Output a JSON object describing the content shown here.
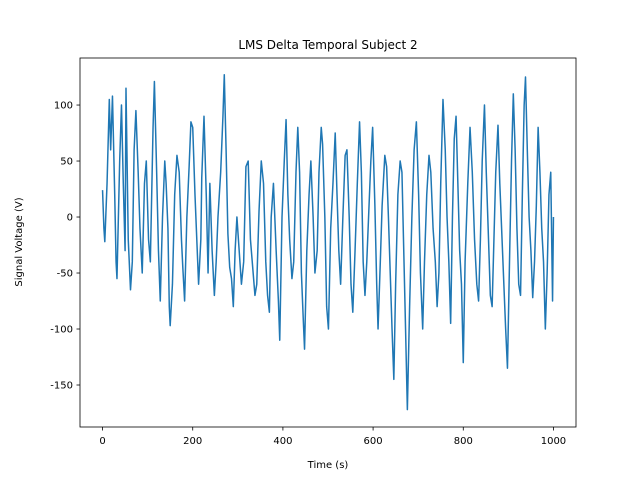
{
  "chart_data": {
    "type": "line",
    "title": "LMS Delta Temporal Subject 2",
    "x_label": "Time (s)",
    "y_label": "Signal Voltage (V)",
    "xlim": [
      -50,
      1050
    ],
    "ylim": [
      -187.5,
      142
    ],
    "xticks": [
      0,
      200,
      400,
      600,
      800,
      1000
    ],
    "yticks": [
      -150,
      -100,
      -50,
      0,
      50,
      100
    ],
    "grid": false,
    "x": [
      0,
      3,
      5,
      10,
      15,
      18,
      22,
      27,
      30,
      32,
      38,
      42,
      46,
      50,
      52,
      57,
      62,
      66,
      70,
      74,
      79,
      83,
      88,
      93,
      97,
      102,
      106,
      112,
      115,
      120,
      124,
      128,
      133,
      138,
      141,
      145,
      148,
      150,
      155,
      160,
      165,
      170,
      175,
      178,
      182,
      187,
      192,
      196,
      200,
      205,
      210,
      213,
      218,
      220,
      225,
      230,
      234,
      238,
      243,
      248,
      252,
      256,
      262,
      267,
      270,
      274,
      278,
      282,
      286,
      290,
      294,
      298,
      303,
      308,
      313,
      318,
      323,
      328,
      333,
      338,
      342,
      347,
      352,
      357,
      362,
      366,
      370,
      374,
      379,
      385,
      390,
      393,
      398,
      403,
      407,
      411,
      415,
      420,
      424,
      429,
      433,
      437,
      441,
      445,
      448,
      453,
      458,
      462,
      467,
      471,
      476,
      480,
      485,
      488,
      493,
      497,
      501,
      506,
      511,
      516,
      520,
      524,
      528,
      533,
      538,
      542,
      547,
      551,
      555,
      560,
      565,
      570,
      574,
      578,
      582,
      586,
      590,
      595,
      599,
      604,
      608,
      611,
      616,
      620,
      626,
      630,
      634,
      638,
      642,
      646,
      650,
      655,
      660,
      664,
      668,
      672,
      676,
      681,
      686,
      691,
      696,
      701,
      705,
      710,
      714,
      719,
      724,
      728,
      733,
      738,
      742,
      746,
      750,
      755,
      760,
      764,
      768,
      772,
      776,
      780,
      784,
      788,
      792,
      796,
      800,
      804,
      810,
      815,
      820,
      825,
      830,
      834,
      838,
      842,
      847,
      851,
      856,
      860,
      864,
      868,
      872,
      877,
      881,
      886,
      890,
      894,
      898,
      903,
      907,
      911,
      915,
      919,
      923,
      927,
      931,
      935,
      938,
      942,
      946,
      950,
      954,
      958,
      962,
      966,
      970,
      974,
      978,
      982,
      986,
      990,
      994,
      998,
      1000
    ],
    "series": [
      {
        "color": "#1f77b4",
        "values": [
          24,
          -10,
          -22,
          30,
          105,
          60,
          108,
          20,
          -40,
          -55,
          50,
          100,
          30,
          -30,
          115,
          -20,
          -65,
          -40,
          60,
          95,
          40,
          -10,
          -50,
          30,
          50,
          -20,
          -40,
          80,
          121,
          40,
          -30,
          -75,
          0,
          50,
          30,
          -10,
          -80,
          -97,
          -60,
          20,
          55,
          40,
          -20,
          -45,
          -75,
          0,
          45,
          85,
          80,
          20,
          -30,
          -60,
          -20,
          35,
          90,
          20,
          -50,
          30,
          -30,
          -70,
          -40,
          0,
          40,
          90,
          127,
          60,
          -15,
          -45,
          -55,
          -80,
          -30,
          0,
          -30,
          -60,
          -40,
          45,
          50,
          -20,
          -45,
          -70,
          -60,
          5,
          50,
          30,
          -40,
          -70,
          -85,
          0,
          30,
          -30,
          -75,
          -110,
          0,
          50,
          87,
          20,
          -20,
          -55,
          -40,
          40,
          80,
          40,
          -50,
          -90,
          -118,
          -30,
          20,
          50,
          0,
          -50,
          -30,
          40,
          80,
          65,
          0,
          -80,
          -100,
          -10,
          30,
          75,
          20,
          -30,
          -60,
          0,
          55,
          60,
          0,
          -60,
          -85,
          -30,
          30,
          85,
          40,
          -40,
          -70,
          -40,
          0,
          50,
          80,
          10,
          -60,
          -100,
          -40,
          10,
          55,
          45,
          0,
          -50,
          -100,
          -145,
          -60,
          20,
          50,
          40,
          -30,
          -100,
          -172,
          -80,
          0,
          60,
          85,
          20,
          -50,
          -100,
          -40,
          20,
          55,
          40,
          -10,
          -40,
          -80,
          -50,
          30,
          105,
          60,
          0,
          -40,
          -95,
          0,
          70,
          90,
          30,
          -30,
          -60,
          -130,
          -40,
          30,
          80,
          40,
          -20,
          -60,
          -75,
          -20,
          50,
          100,
          40,
          -20,
          -70,
          -80,
          -20,
          40,
          82,
          30,
          -20,
          -60,
          -100,
          -135,
          -30,
          50,
          110,
          60,
          -10,
          -60,
          -70,
          20,
          100,
          125,
          60,
          0,
          -30,
          -72,
          -40,
          10,
          80,
          40,
          -10,
          -40,
          -100,
          -50,
          20,
          40,
          -75,
          0
        ]
      }
    ]
  }
}
